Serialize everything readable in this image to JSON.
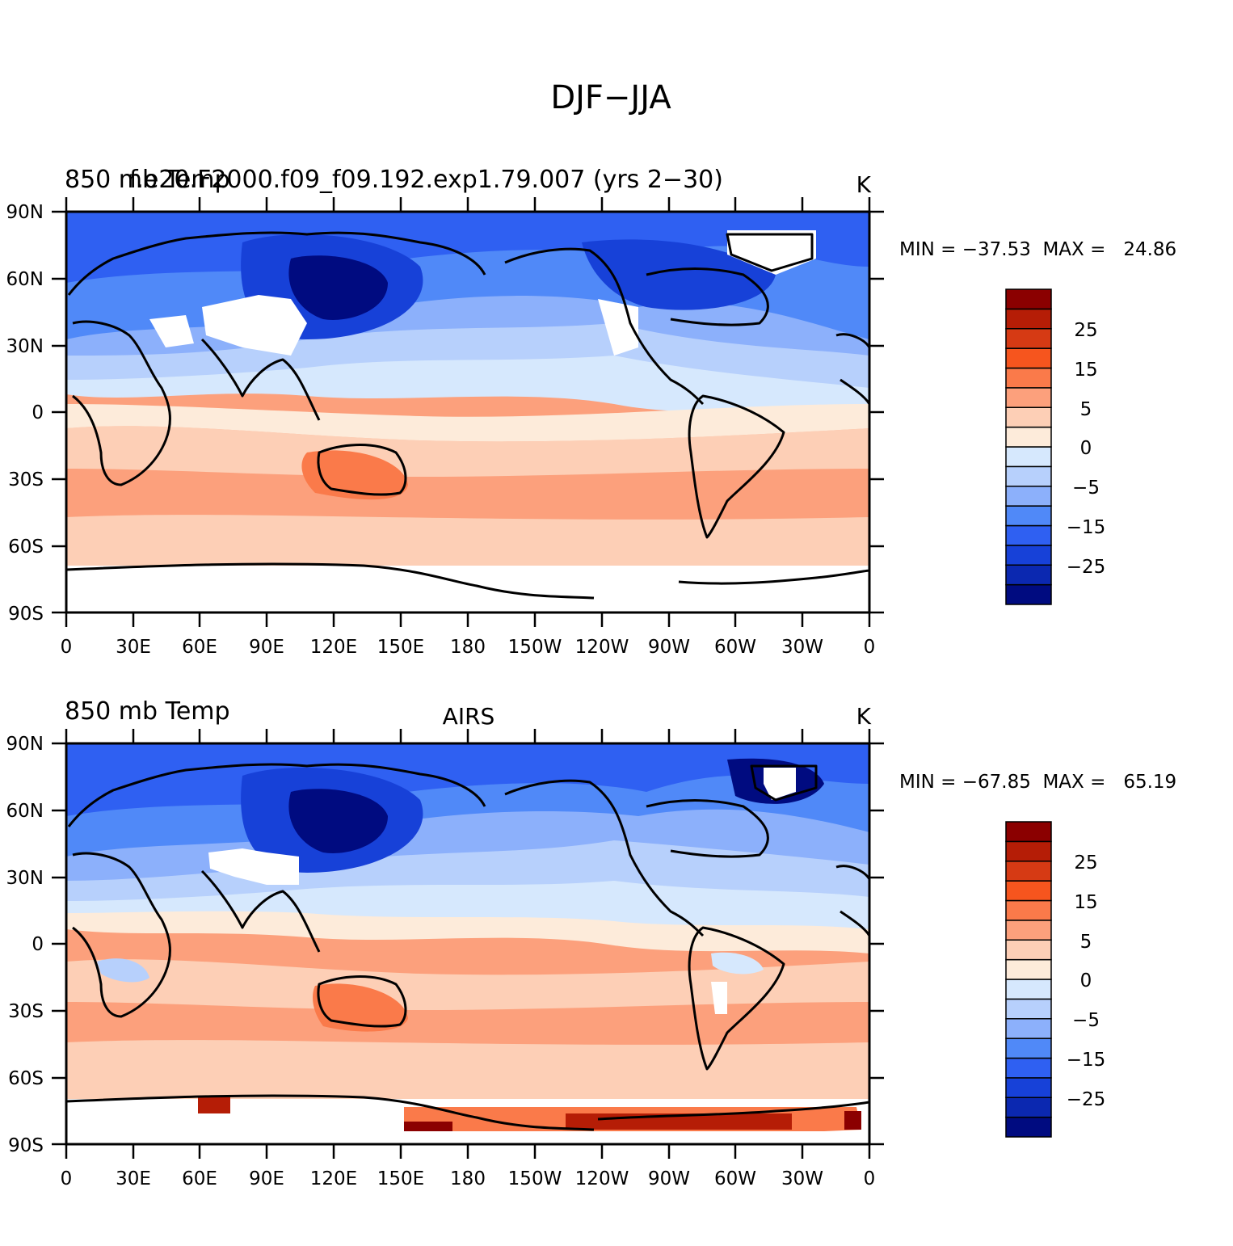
{
  "title": "DJF−JJA",
  "lat_ticks": [
    "90N",
    "60N",
    "30N",
    "0",
    "30S",
    "60S",
    "90S"
  ],
  "lon_ticks": [
    "0",
    "30E",
    "60E",
    "90E",
    "120E",
    "150E",
    "180",
    "150W",
    "120W",
    "90W",
    "60W",
    "30W",
    "0"
  ],
  "colorbar": {
    "colors": [
      "#8b0000",
      "#b51d06",
      "#d63a14",
      "#f6551e",
      "#fa7a4a",
      "#fca07c",
      "#fdcfb6",
      "#fdebda",
      "#d6e8fd",
      "#b7d0fc",
      "#8cb0fb",
      "#5089f8",
      "#2f60f2",
      "#1741d8",
      "#0b28b0",
      "#000b80"
    ],
    "labels": [
      "25",
      "15",
      "5",
      "0",
      "−5",
      "−15",
      "−25"
    ]
  },
  "panels": [
    {
      "left_title": "850 mb Temp",
      "overlay_title": "f.e20.F2000.f09_f09.192.exp1.79.007 (yrs 2−30)",
      "center_title": "",
      "units": "K",
      "min_max": "MIN = −37.53  MAX =   24.86"
    },
    {
      "left_title": "850 mb Temp",
      "overlay_title": "",
      "center_title": "AIRS",
      "units": "K",
      "min_max": "MIN = −67.85  MAX =   65.19"
    }
  ]
}
